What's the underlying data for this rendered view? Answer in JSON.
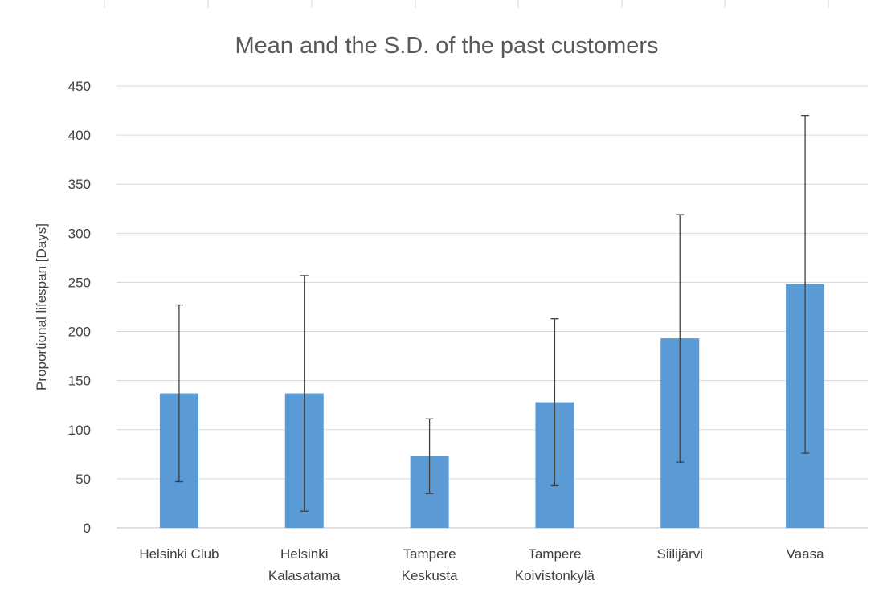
{
  "chart_data": {
    "type": "bar",
    "title": "Mean and the S.D. of the past customers",
    "xlabel": "",
    "ylabel": "Proportional lifespan [Days]",
    "ylim": [
      0,
      450
    ],
    "yticks": [
      0,
      50,
      100,
      150,
      200,
      250,
      300,
      350,
      400,
      450
    ],
    "grid": true,
    "legend": "none",
    "color": "#5b9bd5",
    "categories": [
      [
        "Helsinki Club"
      ],
      [
        "Helsinki",
        "Kalasatama"
      ],
      [
        "Tampere",
        "Keskusta"
      ],
      [
        "Tampere",
        "Koivistonkylä"
      ],
      [
        "Siilijärvi"
      ],
      [
        "Vaasa"
      ]
    ],
    "values": [
      137,
      137,
      73,
      128,
      193,
      248
    ],
    "error": [
      90,
      120,
      38,
      85,
      126,
      172
    ]
  }
}
